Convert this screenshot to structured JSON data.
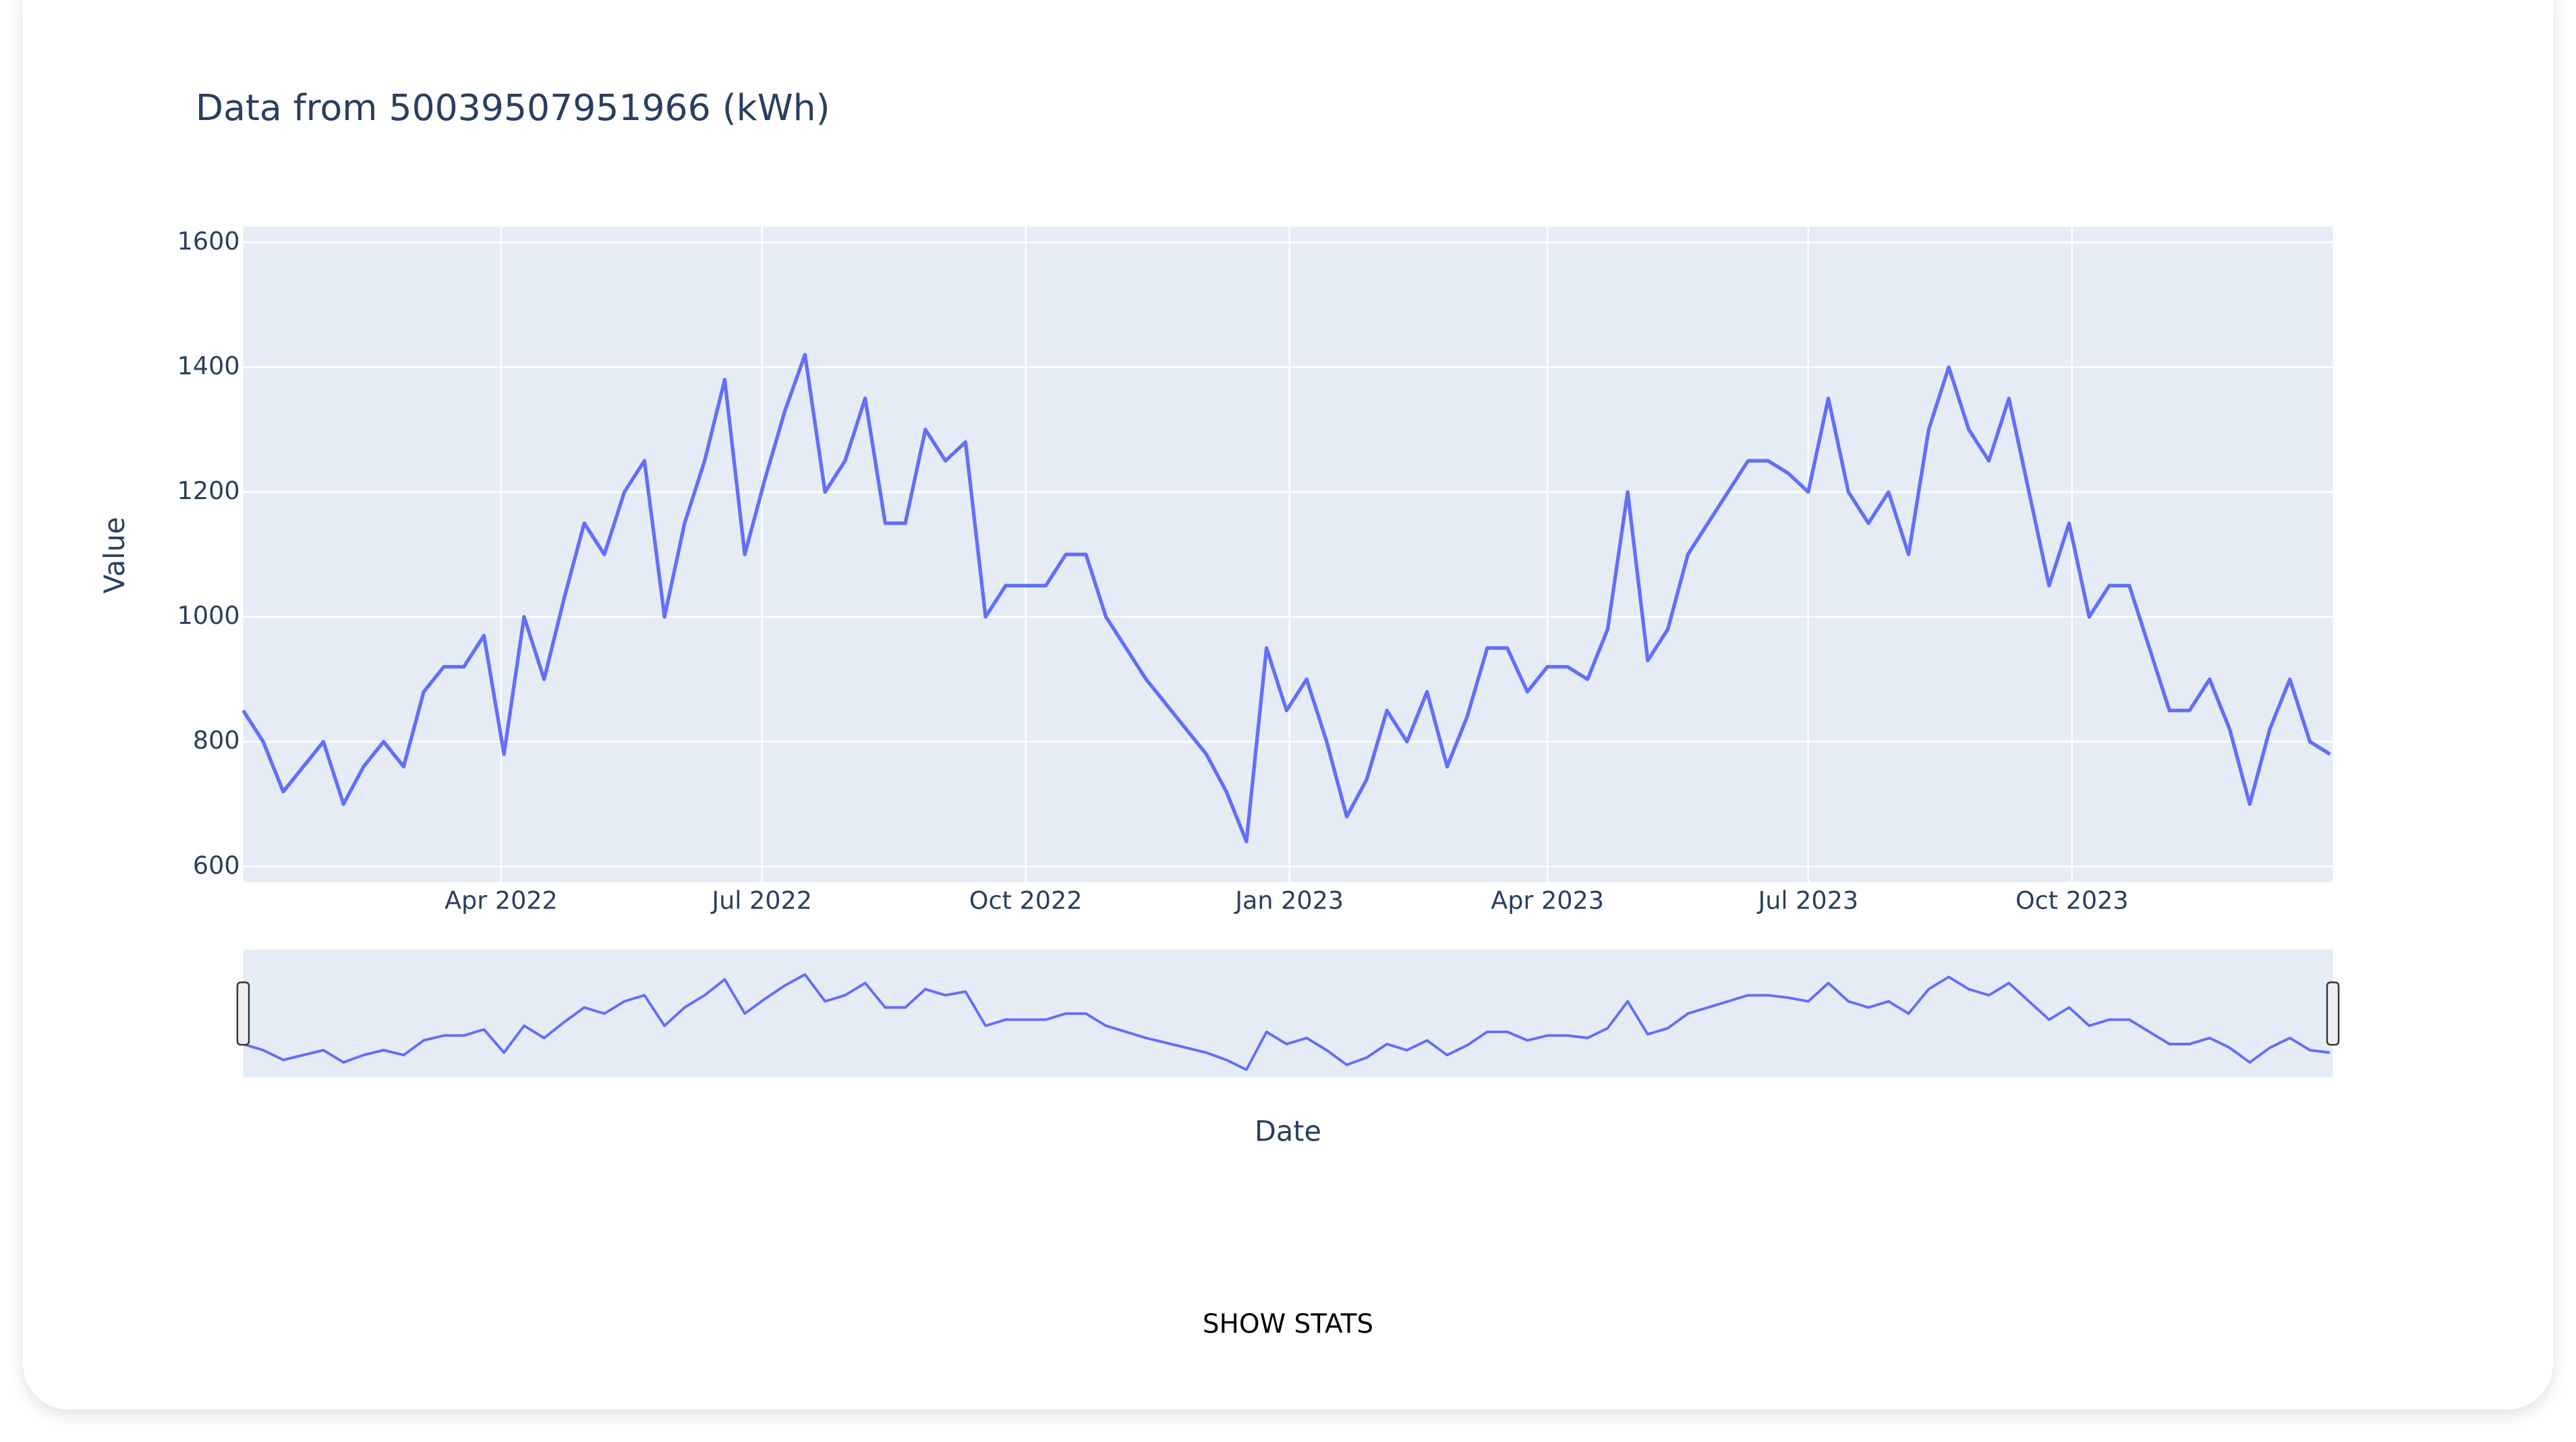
{
  "chart_data": {
    "type": "line",
    "title": "Data from 50039507951966 (kWh)",
    "x_label": "Date",
    "y_label": "Value",
    "color": "#636efa",
    "grid": true,
    "range_slider": true,
    "button": "SHOW STATS",
    "x": [
      0,
      7,
      14,
      21,
      28,
      35,
      42,
      49,
      56,
      63,
      70,
      77,
      84,
      91,
      98,
      105,
      112,
      119,
      126,
      133,
      140,
      147,
      154,
      161,
      168,
      175,
      182,
      189,
      196,
      203,
      210,
      217,
      224,
      231,
      238,
      245,
      252,
      259,
      266,
      273,
      280,
      287,
      294,
      301,
      308,
      315,
      322,
      329,
      336,
      343,
      350,
      357,
      364,
      371,
      378,
      385,
      392,
      399,
      406,
      413,
      420,
      427,
      434,
      441,
      448,
      455,
      462,
      469,
      476,
      483,
      490,
      497,
      504,
      511,
      518,
      525,
      532,
      539,
      546,
      553,
      560,
      567,
      574,
      581,
      588,
      595,
      602,
      609,
      616,
      623,
      630,
      637,
      644,
      651,
      658,
      665,
      672,
      679,
      686,
      693,
      700,
      707,
      714,
      721,
      728
    ],
    "values": [
      850,
      800,
      720,
      760,
      800,
      700,
      760,
      800,
      760,
      880,
      920,
      920,
      970,
      780,
      1000,
      900,
      1030,
      1150,
      1100,
      1200,
      1250,
      1000,
      1150,
      1250,
      1380,
      1100,
      1220,
      1330,
      1420,
      1200,
      1250,
      1350,
      1150,
      1150,
      1300,
      1250,
      1280,
      1000,
      1050,
      1050,
      1050,
      1100,
      1100,
      1000,
      950,
      900,
      860,
      820,
      780,
      720,
      640,
      950,
      850,
      900,
      800,
      680,
      740,
      850,
      800,
      880,
      760,
      840,
      950,
      950,
      880,
      920,
      920,
      900,
      980,
      1200,
      930,
      980,
      1100,
      1150,
      1200,
      1250,
      1250,
      1230,
      1200,
      1350,
      1200,
      1150,
      1200,
      1100,
      1300,
      1400,
      1300,
      1250,
      1350,
      1200,
      1050,
      1150,
      1000,
      1050,
      1050,
      950,
      850,
      850,
      900,
      820,
      700,
      820,
      900,
      800,
      780
    ],
    "xlim": [
      0,
      729
    ],
    "xticks": [
      {
        "value": 90,
        "label": "Apr 2022"
      },
      {
        "value": 181,
        "label": "Jul 2022"
      },
      {
        "value": 273,
        "label": "Oct 2022"
      },
      {
        "value": 365,
        "label": "Jan 2023"
      },
      {
        "value": 455,
        "label": "Apr 2023"
      },
      {
        "value": 546,
        "label": "Jul 2023"
      },
      {
        "value": 638,
        "label": "Oct 2023"
      }
    ],
    "ylim": [
      575,
      1625
    ],
    "yticks": [
      600,
      800,
      1000,
      1200,
      1400,
      1600
    ]
  }
}
